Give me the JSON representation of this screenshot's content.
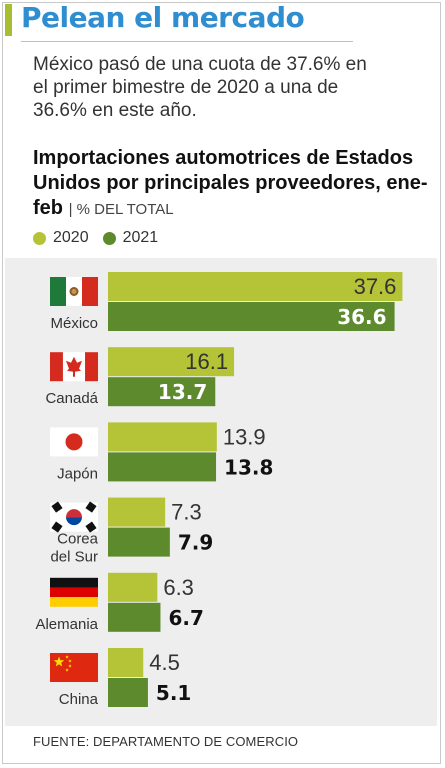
{
  "title": "Pelean el mercado",
  "subtitle": "México pasó de una cuota de 37.6% en el primer bimestre de 2020 a una de 36.6% en este año.",
  "chart_title": "Importaciones automotrices de Estados Unidos por principales proveedores, ene-feb",
  "chart_unit": "| % DEL TOTAL",
  "source": "FUENTE: DEPARTAMENTO DE COMERCIO",
  "colors": {
    "series_2020": "#b5c336",
    "series_2021": "#5c8a2d",
    "title": "#2f8ed0",
    "accent_bar": "#a9bd30"
  },
  "chart_data": {
    "type": "bar",
    "orientation": "horizontal",
    "categories": [
      "México",
      "Canadá",
      "Japón",
      "Corea del Sur",
      "Alemania",
      "China"
    ],
    "series": [
      {
        "name": "2020",
        "values": [
          37.6,
          16.1,
          13.9,
          7.3,
          6.3,
          4.5
        ]
      },
      {
        "name": "2021",
        "values": [
          36.6,
          13.7,
          13.8,
          7.9,
          6.7,
          5.1
        ]
      }
    ],
    "value_labels_2020": [
      "37.6",
      "16.1",
      "13.9",
      "7.3",
      "6.3",
      "4.5"
    ],
    "value_labels_2021": [
      "36.6",
      "13.7",
      "13.8",
      "7.9",
      "6.7",
      "5.1"
    ],
    "flags": [
      "mexico-flag-icon",
      "canada-flag-icon",
      "japan-flag-icon",
      "south-korea-flag-icon",
      "germany-flag-icon",
      "china-flag-icon"
    ],
    "legend_position": "top-left"
  }
}
